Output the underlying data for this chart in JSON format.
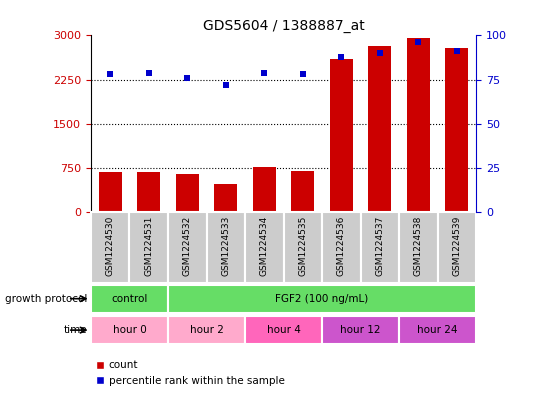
{
  "title": "GDS5604 / 1388887_at",
  "samples": [
    "GSM1224530",
    "GSM1224531",
    "GSM1224532",
    "GSM1224533",
    "GSM1224534",
    "GSM1224535",
    "GSM1224536",
    "GSM1224537",
    "GSM1224538",
    "GSM1224539"
  ],
  "counts": [
    680,
    690,
    640,
    480,
    760,
    700,
    2600,
    2820,
    2950,
    2780
  ],
  "percentile_ranks": [
    78,
    79,
    76,
    72,
    79,
    78,
    88,
    90,
    96,
    91
  ],
  "left_yaxis": {
    "min": 0,
    "max": 3000,
    "ticks": [
      0,
      750,
      1500,
      2250,
      3000
    ],
    "color": "#cc0000"
  },
  "right_yaxis": {
    "min": 0,
    "max": 100,
    "ticks": [
      0,
      25,
      50,
      75,
      100
    ],
    "color": "#0000cc"
  },
  "bar_color": "#cc0000",
  "dot_color": "#0000cc",
  "grid_dotted_values": [
    750,
    1500,
    2250
  ],
  "sample_box_color": "#cccccc",
  "growth_protocol_row": {
    "label": "growth protocol",
    "groups": [
      {
        "label": "control",
        "start": 0,
        "end": 2,
        "color": "#66dd66"
      },
      {
        "label": "FGF2 (100 ng/mL)",
        "start": 2,
        "end": 10,
        "color": "#66dd66"
      }
    ]
  },
  "time_row": {
    "label": "time",
    "groups": [
      {
        "label": "hour 0",
        "start": 0,
        "end": 2,
        "color": "#ffaacc"
      },
      {
        "label": "hour 2",
        "start": 2,
        "end": 4,
        "color": "#ffaacc"
      },
      {
        "label": "hour 4",
        "start": 4,
        "end": 6,
        "color": "#ff66bb"
      },
      {
        "label": "hour 12",
        "start": 6,
        "end": 8,
        "color": "#cc55cc"
      },
      {
        "label": "hour 24",
        "start": 8,
        "end": 10,
        "color": "#cc55cc"
      }
    ]
  },
  "legend": [
    {
      "label": "count",
      "color": "#cc0000",
      "marker": "s"
    },
    {
      "label": "percentile rank within the sample",
      "color": "#0000cc",
      "marker": "s"
    }
  ],
  "bar_width": 0.6,
  "figsize": [
    5.35,
    3.93
  ],
  "dpi": 100
}
